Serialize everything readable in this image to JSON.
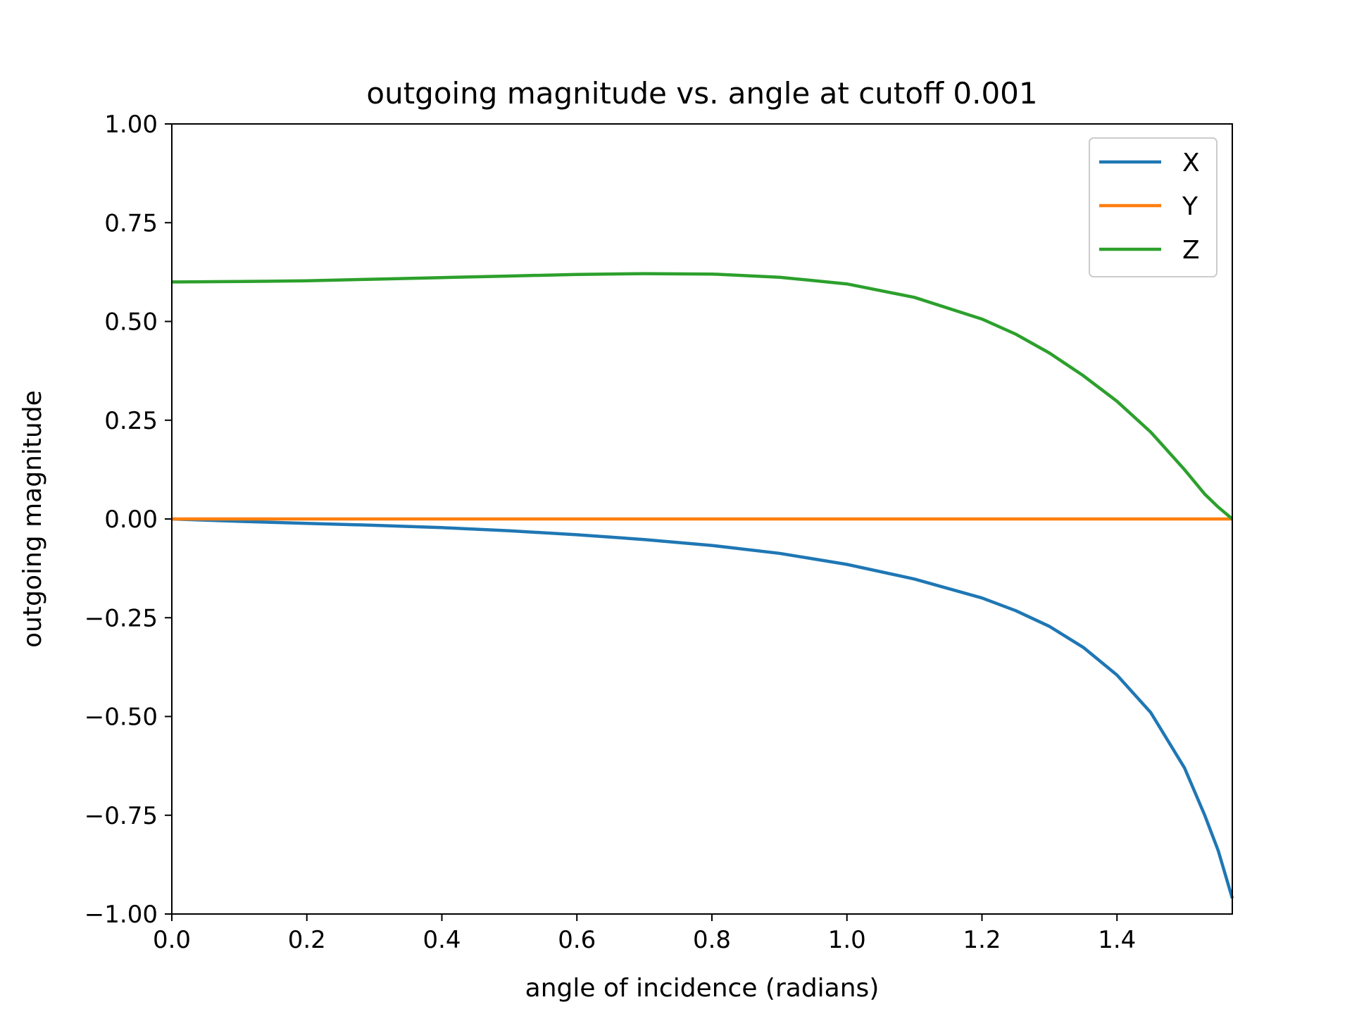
{
  "chart_data": {
    "type": "line",
    "title": "outgoing magnitude vs. angle at cutoff 0.001",
    "xlabel": "angle of incidence (radians)",
    "ylabel": "outgoing magnitude",
    "xlim": [
      0,
      1.5708
    ],
    "ylim": [
      -1,
      1
    ],
    "xticks": [
      0.0,
      0.2,
      0.4,
      0.6,
      0.8,
      1.0,
      1.2,
      1.4
    ],
    "xtick_labels": [
      "0.0",
      "0.2",
      "0.4",
      "0.6",
      "0.8",
      "1.0",
      "1.2",
      "1.4"
    ],
    "yticks": [
      1.0,
      0.75,
      0.5,
      0.25,
      0.0,
      -0.25,
      -0.5,
      -0.75,
      -1.0
    ],
    "ytick_labels": [
      "1.00",
      "0.75",
      "0.50",
      "0.25",
      "0.00",
      "−0.25",
      "−0.50",
      "−0.75",
      "−1.00"
    ],
    "grid": false,
    "legend_position": "top-right",
    "series": [
      {
        "name": "X",
        "color": "#1f77b4",
        "x": [
          0,
          0.1,
          0.2,
          0.3,
          0.4,
          0.5,
          0.6,
          0.7,
          0.8,
          0.9,
          1.0,
          1.1,
          1.2,
          1.25,
          1.3,
          1.35,
          1.4,
          1.45,
          1.5,
          1.53,
          1.55,
          1.5708
        ],
        "y": [
          0,
          -0.006,
          -0.011,
          -0.016,
          -0.022,
          -0.03,
          -0.04,
          -0.052,
          -0.067,
          -0.087,
          -0.115,
          -0.152,
          -0.2,
          -0.232,
          -0.272,
          -0.325,
          -0.395,
          -0.49,
          -0.63,
          -0.75,
          -0.84,
          -0.96
        ]
      },
      {
        "name": "Y",
        "color": "#ff7f0e",
        "x": [
          0,
          1.5708
        ],
        "y": [
          0,
          0
        ]
      },
      {
        "name": "Z",
        "color": "#2ca02c",
        "x": [
          0,
          0.1,
          0.2,
          0.3,
          0.4,
          0.5,
          0.6,
          0.7,
          0.8,
          0.9,
          1.0,
          1.1,
          1.2,
          1.25,
          1.3,
          1.35,
          1.4,
          1.45,
          1.5,
          1.53,
          1.55,
          1.5708
        ],
        "y": [
          0.6,
          0.601,
          0.603,
          0.607,
          0.611,
          0.615,
          0.619,
          0.621,
          0.62,
          0.612,
          0.595,
          0.561,
          0.506,
          0.468,
          0.42,
          0.363,
          0.298,
          0.22,
          0.125,
          0.063,
          0.03,
          0
        ]
      }
    ]
  }
}
